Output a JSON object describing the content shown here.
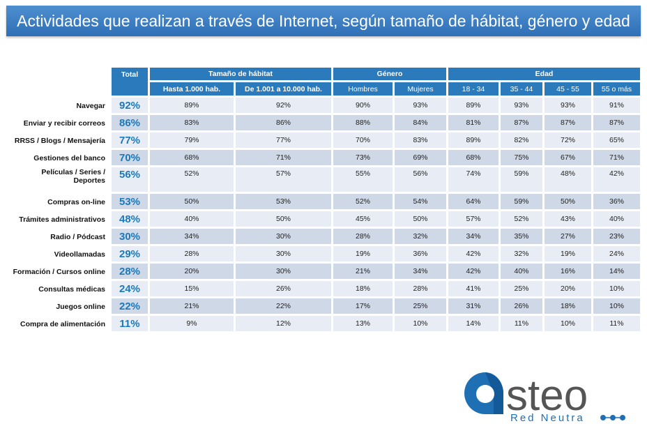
{
  "title": "Actividades que realizan a través de Internet, según tamaño de hábitat, género y edad",
  "logo": {
    "text": "asteo",
    "tagline": "Red Neutra",
    "color": "#1f6fb4"
  },
  "colors": {
    "header": "#2b7abb",
    "row_light": "#e8edf5",
    "row_dark": "#ced8e7",
    "total_text": "#1b79b9"
  },
  "chart_data": {
    "type": "table",
    "total_header": "Total",
    "groups": [
      {
        "label": "Tamaño de hábitat",
        "columns": [
          "Hasta 1.000 hab.",
          "De 1.001 a 10.000 hab."
        ]
      },
      {
        "label": "Género",
        "columns": [
          "Hombres",
          "Mujeres"
        ]
      },
      {
        "label": "Edad",
        "columns": [
          "18 - 34",
          "35 - 44",
          "45 - 55",
          "55 o más"
        ]
      }
    ],
    "rows": [
      {
        "label": "Navegar",
        "total": "92%",
        "values": [
          "89%",
          "92%",
          "90%",
          "93%",
          "89%",
          "93%",
          "93%",
          "91%"
        ]
      },
      {
        "label": "Enviar y recibir correos",
        "total": "86%",
        "values": [
          "83%",
          "86%",
          "88%",
          "84%",
          "81%",
          "87%",
          "87%",
          "87%"
        ]
      },
      {
        "label": "RRSS / Blogs / Mensajería",
        "total": "77%",
        "values": [
          "79%",
          "77%",
          "70%",
          "83%",
          "89%",
          "82%",
          "72%",
          "65%"
        ]
      },
      {
        "label": "Gestiones del banco",
        "total": "70%",
        "values": [
          "68%",
          "71%",
          "73%",
          "69%",
          "68%",
          "75%",
          "67%",
          "71%"
        ]
      },
      {
        "label": "Películas / Series / Deportes",
        "total": "56%",
        "values": [
          "52%",
          "57%",
          "55%",
          "56%",
          "74%",
          "59%",
          "48%",
          "42%"
        ]
      },
      {
        "label": "Compras on-line",
        "total": "53%",
        "values": [
          "50%",
          "53%",
          "52%",
          "54%",
          "64%",
          "59%",
          "50%",
          "36%"
        ]
      },
      {
        "label": "Trámites administrativos",
        "total": "48%",
        "values": [
          "40%",
          "50%",
          "45%",
          "50%",
          "57%",
          "52%",
          "43%",
          "40%"
        ]
      },
      {
        "label": "Radio / Pódcast",
        "total": "30%",
        "values": [
          "34%",
          "30%",
          "28%",
          "32%",
          "34%",
          "35%",
          "27%",
          "23%"
        ]
      },
      {
        "label": "Videollamadas",
        "total": "29%",
        "values": [
          "28%",
          "30%",
          "19%",
          "36%",
          "42%",
          "32%",
          "19%",
          "24%"
        ]
      },
      {
        "label": "Formación / Cursos online",
        "total": "28%",
        "values": [
          "20%",
          "30%",
          "21%",
          "34%",
          "42%",
          "40%",
          "16%",
          "14%"
        ]
      },
      {
        "label": "Consultas médicas",
        "total": "24%",
        "values": [
          "15%",
          "26%",
          "18%",
          "28%",
          "41%",
          "25%",
          "20%",
          "10%"
        ]
      },
      {
        "label": "Juegos online",
        "total": "22%",
        "values": [
          "21%",
          "22%",
          "17%",
          "25%",
          "31%",
          "26%",
          "18%",
          "10%"
        ]
      },
      {
        "label": "Compra de alimentación",
        "total": "11%",
        "values": [
          "9%",
          "12%",
          "13%",
          "10%",
          "14%",
          "11%",
          "10%",
          "11%"
        ]
      }
    ]
  }
}
